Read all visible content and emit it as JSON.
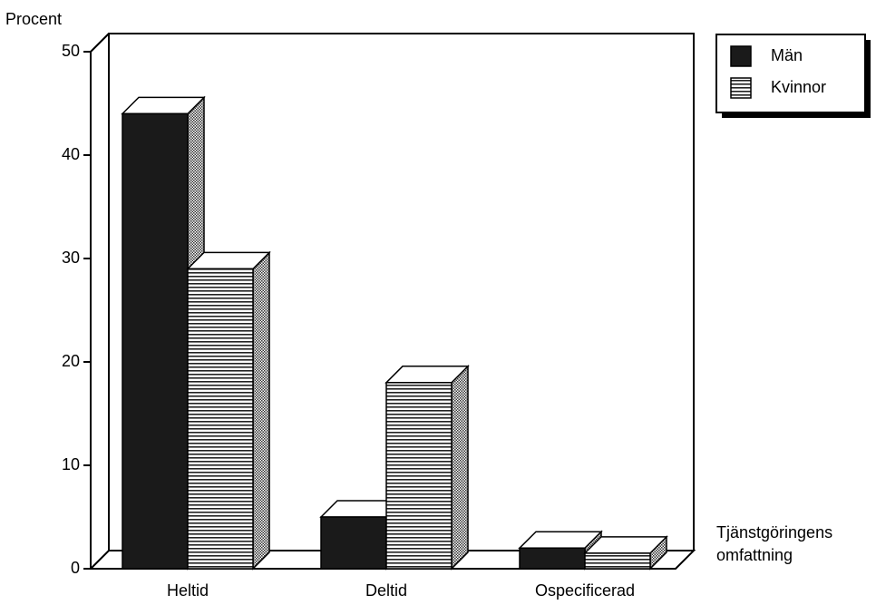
{
  "chart_data": {
    "type": "bar3d",
    "y_label": "Procent",
    "x_label": [
      "Tjänstgöringens",
      "omfattning"
    ],
    "categories": [
      "Heltid",
      "Deltid",
      "Ospecificerad"
    ],
    "series": [
      {
        "name": "Män",
        "color": "#1a1a1a",
        "values": [
          44,
          5,
          2
        ]
      },
      {
        "name": "Kvinnor",
        "color": "#ffffff",
        "values": [
          29,
          18,
          1.5
        ]
      }
    ],
    "ylim": [
      0,
      50
    ],
    "yticks": [
      0,
      10,
      20,
      30,
      40,
      50
    ],
    "legend": "top-right"
  }
}
